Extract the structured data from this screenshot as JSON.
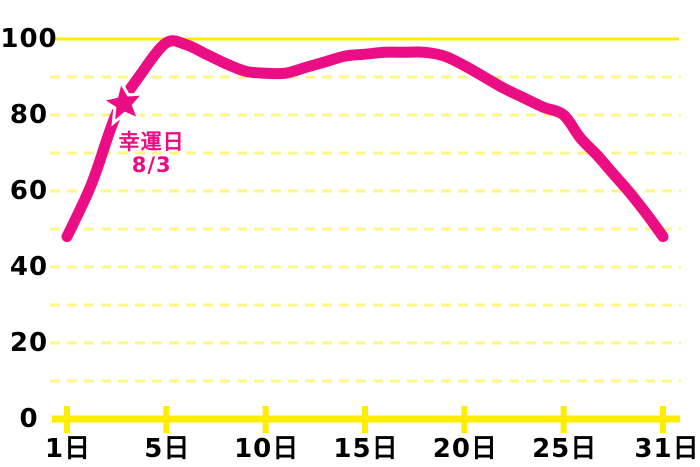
{
  "chart_data": {
    "type": "line",
    "title": "",
    "xlabel": "",
    "ylabel": "",
    "ylim": [
      0,
      100
    ],
    "grid": "horizontal, solid line at 100 and 0, dashed lines every 10",
    "legend": "none",
    "x": [
      1,
      2,
      3,
      4,
      5,
      6,
      7,
      8,
      9,
      10,
      11,
      12,
      13,
      14,
      15,
      16,
      17,
      18,
      19,
      20,
      21,
      22,
      23,
      24,
      25,
      26,
      27,
      28,
      29,
      30,
      31
    ],
    "values": [
      48,
      62,
      80.5,
      91,
      99,
      98.5,
      96,
      93.5,
      91.5,
      91,
      91,
      92.5,
      94,
      95.5,
      96,
      96.5,
      96.5,
      96.5,
      95.5,
      93,
      90,
      87,
      84.5,
      82,
      80,
      74,
      69.5,
      64.5,
      59.5,
      54,
      48
    ],
    "x_tick_days": [
      1,
      5,
      10,
      15,
      20,
      25,
      31
    ],
    "x_tick_labels": [
      "1日",
      "5日",
      "10日",
      "15日",
      "20日",
      "25日",
      "31日"
    ],
    "y_tick_values": [
      100,
      80,
      60,
      40,
      20,
      0
    ],
    "y_tick_labels": [
      "100",
      "80",
      "60",
      "40",
      "20",
      "0"
    ],
    "annotation": {
      "marker": "star",
      "day": 3,
      "value": 83,
      "label_line1": "幸運日",
      "label_line2": "8/3"
    },
    "colors": {
      "line": "#EB0D84",
      "marker": "#EB0D84",
      "marker_outline": "#FFFFFF",
      "grid_solid": "#FFED00",
      "grid_dashed": "#FFF685",
      "axis": "#FFED00",
      "tick": "#FFED00",
      "text": "#000000",
      "annotation_text": "#EB0D84",
      "background": "#FFFFFF"
    }
  }
}
